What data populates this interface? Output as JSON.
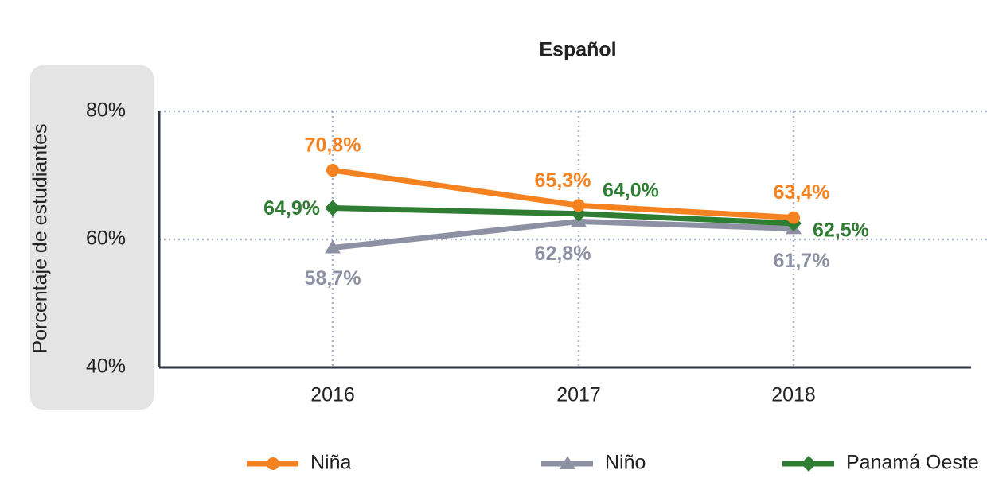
{
  "chart_data": {
    "type": "line",
    "title": "Español",
    "ylabel": "Porcentaje de estudiantes",
    "categories": [
      "2016",
      "2017",
      "2018"
    ],
    "series": [
      {
        "name": "Niña",
        "color": "#f58220",
        "marker": "circle",
        "values": [
          70.8,
          65.3,
          63.4
        ],
        "value_labels": [
          "70,8%",
          "65,3%",
          "63,4%"
        ]
      },
      {
        "name": "Niño",
        "color": "#8e91a3",
        "marker": "triangle",
        "values": [
          58.7,
          62.8,
          61.7
        ],
        "value_labels": [
          "58,7%",
          "62,8%",
          "61,7%"
        ]
      },
      {
        "name": "Panamá Oeste",
        "color": "#2e7d32",
        "marker": "diamond",
        "values": [
          64.9,
          64.0,
          62.5
        ],
        "value_labels": [
          "64,9%",
          "64,0%",
          "62,5%"
        ]
      }
    ],
    "ylim": [
      40,
      80
    ],
    "yticks": [
      {
        "value": 40,
        "label": "40%"
      },
      {
        "value": 60,
        "label": "60%"
      },
      {
        "value": 80,
        "label": "80%"
      }
    ],
    "grid": true
  }
}
